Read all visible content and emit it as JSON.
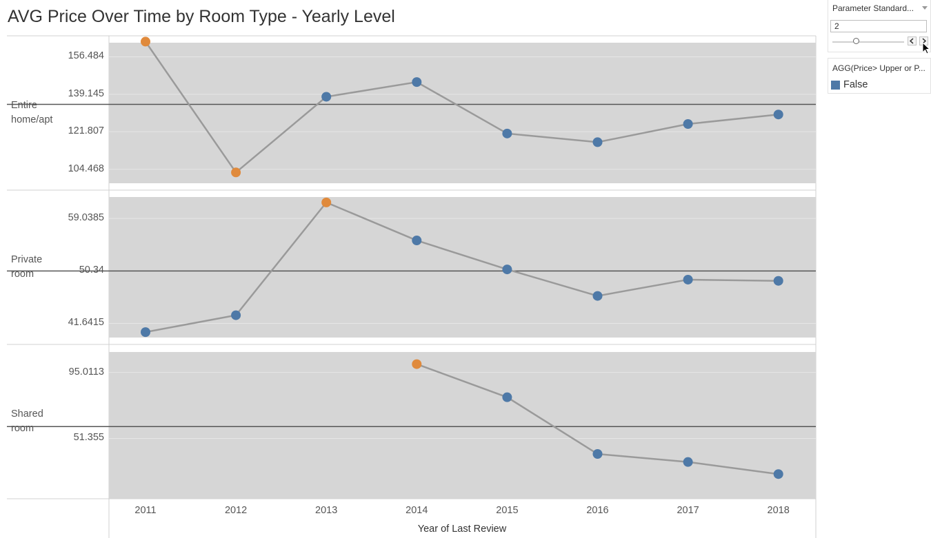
{
  "title": "AVG Price Over Time by Room Type - Yearly Level",
  "colors": {
    "panel_bg": "#d6d6d6",
    "line": "#9a9a9a",
    "reference_line": "#555555",
    "false_color": "#4e79a7",
    "true_color": "#e08a3c",
    "grid": "#e6e6e6"
  },
  "parameter": {
    "title": "Parameter Standard...",
    "value": "2",
    "slider_fraction": 0.33,
    "prev_icon": "chevron-left-icon",
    "next_icon": "chevron-right-icon"
  },
  "legend": {
    "title": "AGG(Price> Upper or P...",
    "items": [
      {
        "label": "False",
        "color": "#4e79a7"
      }
    ]
  },
  "chart_data": {
    "type": "line",
    "title": "AVG Price Over Time by Room Type - Yearly Level",
    "xlabel": "Year of Last Review",
    "categories": [
      "2011",
      "2012",
      "2013",
      "2014",
      "2015",
      "2016",
      "2017",
      "2018"
    ],
    "panels": [
      {
        "row_label": "Entire home/apt",
        "row_label_lines": [
          "Entire",
          "home/apt"
        ],
        "ylim": [
          98,
          163
        ],
        "yticks": [
          104.468,
          121.807,
          139.145,
          156.484
        ],
        "ytick_labels": [
          "104.468",
          "121.807",
          "139.145",
          "156.484"
        ],
        "reference": 134.5,
        "values": [
          163.5,
          103.0,
          138.0,
          144.8,
          121.0,
          117.0,
          125.4,
          129.8
        ],
        "outlier": [
          true,
          true,
          false,
          false,
          false,
          false,
          false,
          false
        ]
      },
      {
        "row_label": "Private room",
        "row_label_lines": [
          "Private",
          "room"
        ],
        "ylim": [
          39.3,
          62.6
        ],
        "yticks": [
          41.6415,
          50.34,
          59.0385
        ],
        "ytick_labels": [
          "41.6415",
          "50.34",
          "59.0385"
        ],
        "reference": 50.34,
        "values": [
          40.2,
          43.0,
          61.7,
          55.4,
          50.6,
          46.2,
          48.9,
          48.7
        ],
        "outlier": [
          false,
          false,
          true,
          false,
          false,
          false,
          false,
          false
        ]
      },
      {
        "row_label": "Shared room",
        "row_label_lines": [
          "Shared",
          "room"
        ],
        "ylim": [
          11.5,
          108.5
        ],
        "yticks": [
          51.355,
          95.0113
        ],
        "ytick_labels": [
          "51.355",
          "95.0113"
        ],
        "reference": 59.2,
        "values": [
          null,
          null,
          null,
          100.5,
          78.6,
          41.1,
          35.8,
          27.8
        ],
        "outlier": [
          false,
          false,
          false,
          true,
          false,
          false,
          false,
          false
        ]
      }
    ]
  }
}
